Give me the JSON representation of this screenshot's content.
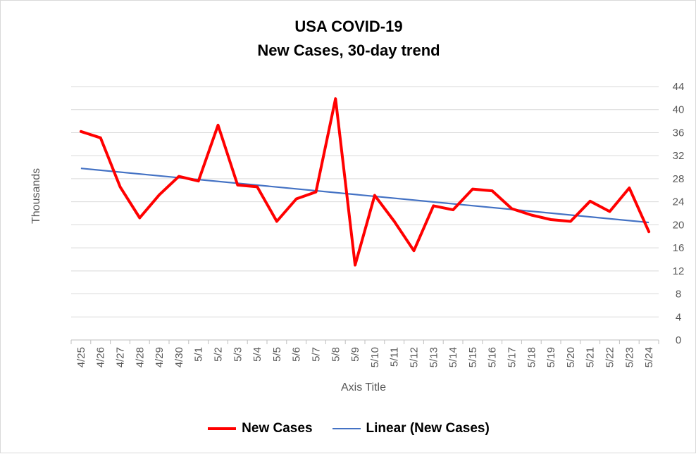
{
  "chart_data": {
    "type": "line",
    "title": "USA COVID-19",
    "subtitle": "New Cases, 30-day trend",
    "xlabel": "Axis Title",
    "ylabel": "Thousands",
    "categories": [
      "4/25",
      "4/26",
      "4/27",
      "4/28",
      "4/29",
      "4/30",
      "5/1",
      "5/2",
      "5/3",
      "5/4",
      "5/5",
      "5/6",
      "5/7",
      "5/8",
      "5/9",
      "5/10",
      "5/11",
      "5/12",
      "5/13",
      "5/14",
      "5/15",
      "5/16",
      "5/17",
      "5/18",
      "5/19",
      "5/20",
      "5/21",
      "5/22",
      "5/23",
      "5/24"
    ],
    "yticks": [
      "0",
      "4",
      "8",
      "12",
      "16",
      "20",
      "24",
      "28",
      "32",
      "36",
      "40",
      "44"
    ],
    "ylim": [
      0,
      44
    ],
    "y_axis_side": "right",
    "grid": true,
    "legend_position": "bottom",
    "series": [
      {
        "name": "New Cases",
        "color": "#ff0000",
        "values": [
          36.2,
          35.1,
          26.6,
          21.2,
          25.2,
          28.4,
          27.6,
          37.3,
          26.9,
          26.6,
          20.6,
          24.5,
          25.7,
          41.9,
          13.0,
          25.1,
          20.6,
          15.5,
          23.3,
          22.6,
          26.2,
          25.9,
          22.8,
          21.7,
          20.9,
          20.6,
          24.1,
          22.3,
          26.4,
          18.8
        ]
      },
      {
        "name": "Linear (New Cases)",
        "color": "#4472c4",
        "trend_start": 29.8,
        "trend_end": 20.4
      }
    ]
  }
}
